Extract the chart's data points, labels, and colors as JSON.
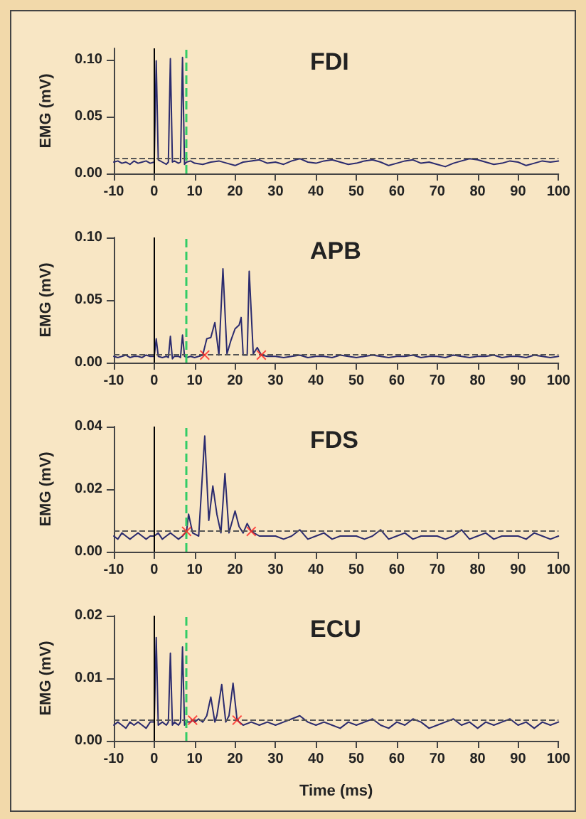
{
  "chart_data": [
    {
      "type": "line",
      "title": "FDI",
      "ylabel": "EMG (mV)",
      "xlim": [
        -10,
        100
      ],
      "xticks": [
        -10,
        0,
        10,
        20,
        30,
        40,
        50,
        60,
        70,
        80,
        90,
        100
      ],
      "ylim": [
        0,
        0.11
      ],
      "yticks": [
        {
          "value": 0,
          "label": "0.00"
        },
        {
          "value": 0.05,
          "label": "0.05"
        },
        {
          "value": 0.1,
          "label": "0.10"
        }
      ],
      "grid": false,
      "series": [
        {
          "color": "#2b2b6e",
          "marker": "none",
          "x": [
            -10,
            -9,
            -8,
            -7,
            -6,
            -5,
            -4,
            -3,
            -2,
            -1,
            0,
            0.5,
            1,
            2,
            3,
            3.5,
            4,
            4.5,
            5,
            6,
            6.5,
            7,
            7.5,
            8,
            9,
            10,
            12,
            14,
            16,
            18,
            20,
            22,
            24,
            26,
            28,
            30,
            32,
            34,
            36,
            38,
            40,
            42,
            44,
            46,
            48,
            50,
            52,
            54,
            56,
            58,
            60,
            62,
            64,
            66,
            68,
            70,
            72,
            74,
            76,
            78,
            80,
            82,
            84,
            86,
            88,
            90,
            92,
            94,
            96,
            98,
            100
          ],
          "values": [
            0.01,
            0.011,
            0.009,
            0.01,
            0.008,
            0.011,
            0.009,
            0.01,
            0.011,
            0.009,
            0.01,
            0.099,
            0.012,
            0.01,
            0.008,
            0.01,
            0.101,
            0.01,
            0.011,
            0.009,
            0.01,
            0.102,
            0.008,
            0.01,
            0.011,
            0.009,
            0.008,
            0.01,
            0.011,
            0.009,
            0.007,
            0.01,
            0.011,
            0.012,
            0.009,
            0.01,
            0.008,
            0.011,
            0.013,
            0.01,
            0.009,
            0.011,
            0.012,
            0.01,
            0.008,
            0.009,
            0.011,
            0.012,
            0.01,
            0.007,
            0.009,
            0.011,
            0.012,
            0.009,
            0.01,
            0.008,
            0.006,
            0.009,
            0.011,
            0.013,
            0.012,
            0.01,
            0.008,
            0.009,
            0.011,
            0.01,
            0.007,
            0.009,
            0.011,
            0.01,
            0.011
          ]
        }
      ],
      "ref_lines": [
        {
          "axis": "y",
          "value": 0.013,
          "color": "#555555",
          "line_style": "dashed"
        },
        {
          "axis": "x",
          "value": 0,
          "color": "#000000",
          "line_style": "solid"
        },
        {
          "axis": "x",
          "value": 8,
          "color": "#33cc66",
          "line_style": "dashed"
        }
      ]
    },
    {
      "type": "line",
      "title": "APB",
      "ylabel": "EMG (mV)",
      "xlim": [
        -10,
        100
      ],
      "xticks": [
        -10,
        0,
        10,
        20,
        30,
        40,
        50,
        60,
        70,
        80,
        90,
        100
      ],
      "ylim": [
        0,
        0.1
      ],
      "yticks": [
        {
          "value": 0,
          "label": "0.00"
        },
        {
          "value": 0.05,
          "label": "0.05"
        },
        {
          "value": 0.1,
          "label": "0.10"
        }
      ],
      "grid": false,
      "series": [
        {
          "color": "#2b2b6e",
          "marker": "none",
          "x": [
            -10,
            -9,
            -8,
            -7,
            -6,
            -5,
            -4,
            -3,
            -2,
            -1,
            0,
            0.5,
            1,
            2,
            3,
            3.5,
            4,
            4.5,
            5,
            6,
            6.5,
            7,
            7.5,
            8,
            9,
            10,
            11,
            12,
            13,
            14,
            15,
            16,
            17,
            18,
            19,
            20,
            21,
            21.5,
            22,
            23,
            23.5,
            24.5,
            25.5,
            26.5,
            28,
            30,
            32,
            34,
            36,
            38,
            40,
            42,
            44,
            46,
            48,
            50,
            52,
            54,
            56,
            58,
            60,
            62,
            64,
            66,
            68,
            70,
            72,
            74,
            76,
            78,
            80,
            82,
            84,
            86,
            88,
            90,
            92,
            94,
            96,
            98,
            100
          ],
          "values": [
            0.005,
            0.004,
            0.005,
            0.006,
            0.004,
            0.005,
            0.005,
            0.004,
            0.006,
            0.005,
            0.005,
            0.019,
            0.005,
            0.004,
            0.005,
            0.004,
            0.021,
            0.003,
            0.005,
            0.005,
            0.004,
            0.022,
            0.005,
            0.004,
            0.005,
            0.004,
            0.005,
            0.006,
            0.019,
            0.02,
            0.032,
            0.006,
            0.075,
            0.007,
            0.018,
            0.027,
            0.03,
            0.036,
            0.006,
            0.006,
            0.073,
            0.007,
            0.012,
            0.006,
            0.005,
            0.005,
            0.004,
            0.005,
            0.006,
            0.004,
            0.005,
            0.005,
            0.004,
            0.006,
            0.005,
            0.004,
            0.005,
            0.006,
            0.005,
            0.004,
            0.005,
            0.005,
            0.006,
            0.004,
            0.005,
            0.005,
            0.004,
            0.006,
            0.005,
            0.004,
            0.005,
            0.005,
            0.006,
            0.004,
            0.005,
            0.005,
            0.004,
            0.006,
            0.005,
            0.004,
            0.005
          ]
        },
        {
          "type": "scatter",
          "color": "#ff2020",
          "marker": "cross",
          "x": [
            12.5,
            26.5
          ],
          "values": [
            0.006,
            0.006
          ]
        }
      ],
      "ref_lines": [
        {
          "axis": "y",
          "value": 0.006,
          "color": "#555555",
          "line_style": "dashed"
        },
        {
          "axis": "x",
          "value": 0,
          "color": "#000000",
          "line_style": "solid"
        },
        {
          "axis": "x",
          "value": 8,
          "color": "#33cc66",
          "line_style": "dashed"
        }
      ]
    },
    {
      "type": "line",
      "title": "FDS",
      "ylabel": "EMG (mV)",
      "xlim": [
        -10,
        100
      ],
      "xticks": [
        -10,
        0,
        10,
        20,
        30,
        40,
        50,
        60,
        70,
        80,
        90,
        100
      ],
      "ylim": [
        0,
        0.04
      ],
      "yticks": [
        {
          "value": 0,
          "label": "0.00"
        },
        {
          "value": 0.02,
          "label": "0.02"
        },
        {
          "value": 0.04,
          "label": "0.04"
        }
      ],
      "grid": false,
      "series": [
        {
          "color": "#2b2b6e",
          "marker": "none",
          "x": [
            -10,
            -9,
            -8,
            -7,
            -6,
            -5,
            -4,
            -3,
            -2,
            -1,
            0,
            1,
            2,
            3,
            4,
            5,
            6,
            7,
            8,
            8.5,
            9.5,
            11,
            12.5,
            13.5,
            14.5,
            15.5,
            16.5,
            17.5,
            18.5,
            20,
            21,
            22,
            23,
            24,
            26,
            28,
            30,
            32,
            34,
            36,
            38,
            40,
            42,
            44,
            46,
            48,
            50,
            52,
            54,
            56,
            58,
            60,
            62,
            64,
            66,
            68,
            70,
            72,
            74,
            76,
            78,
            80,
            82,
            84,
            86,
            88,
            90,
            92,
            94,
            96,
            98,
            100
          ],
          "values": [
            0.005,
            0.004,
            0.006,
            0.005,
            0.004,
            0.005,
            0.006,
            0.005,
            0.004,
            0.005,
            0.005,
            0.006,
            0.004,
            0.005,
            0.006,
            0.005,
            0.004,
            0.005,
            0.0065,
            0.012,
            0.006,
            0.005,
            0.037,
            0.01,
            0.021,
            0.012,
            0.006,
            0.025,
            0.006,
            0.013,
            0.008,
            0.006,
            0.009,
            0.0065,
            0.005,
            0.005,
            0.005,
            0.004,
            0.005,
            0.007,
            0.004,
            0.005,
            0.006,
            0.004,
            0.005,
            0.005,
            0.005,
            0.004,
            0.005,
            0.007,
            0.004,
            0.005,
            0.006,
            0.004,
            0.005,
            0.005,
            0.005,
            0.004,
            0.005,
            0.007,
            0.004,
            0.005,
            0.006,
            0.004,
            0.005,
            0.005,
            0.005,
            0.004,
            0.006,
            0.005,
            0.004,
            0.005
          ]
        },
        {
          "type": "scatter",
          "color": "#ff2020",
          "marker": "cross",
          "x": [
            8,
            24
          ],
          "values": [
            0.0065,
            0.0065
          ]
        }
      ],
      "ref_lines": [
        {
          "axis": "y",
          "value": 0.0065,
          "color": "#555555",
          "line_style": "dashed"
        },
        {
          "axis": "x",
          "value": 0,
          "color": "#000000",
          "line_style": "solid"
        },
        {
          "axis": "x",
          "value": 8,
          "color": "#33cc66",
          "line_style": "dashed"
        }
      ]
    },
    {
      "type": "line",
      "title": "ECU",
      "ylabel": "EMG (mV)",
      "xlabel": "Time (ms)",
      "xlim": [
        -10,
        100
      ],
      "xticks": [
        -10,
        0,
        10,
        20,
        30,
        40,
        50,
        60,
        70,
        80,
        90,
        100
      ],
      "ylim": [
        0,
        0.02
      ],
      "yticks": [
        {
          "value": 0,
          "label": "0.00"
        },
        {
          "value": 0.01,
          "label": "0.01"
        },
        {
          "value": 0.02,
          "label": "0.02"
        }
      ],
      "grid": false,
      "series": [
        {
          "color": "#2b2b6e",
          "marker": "none",
          "x": [
            -10,
            -9,
            -8,
            -7,
            -6,
            -5,
            -4,
            -3,
            -2,
            -1,
            0,
            0.5,
            1,
            2,
            3,
            3.5,
            4,
            4.5,
            5,
            6,
            6.5,
            7,
            7.5,
            8,
            9,
            9.5,
            10,
            11,
            12,
            13,
            14,
            15,
            15.5,
            16.7,
            17.7,
            18.5,
            19.5,
            20.5,
            22,
            24,
            26,
            28,
            30,
            32,
            34,
            36,
            38,
            40,
            42,
            44,
            46,
            48,
            50,
            52,
            54,
            56,
            58,
            60,
            62,
            64,
            66,
            68,
            70,
            72,
            74,
            76,
            78,
            80,
            82,
            84,
            86,
            88,
            90,
            92,
            94,
            96,
            98,
            100
          ],
          "values": [
            0.0025,
            0.003,
            0.0025,
            0.002,
            0.003,
            0.0025,
            0.003,
            0.0025,
            0.002,
            0.003,
            0.003,
            0.0165,
            0.0025,
            0.003,
            0.0025,
            0.003,
            0.014,
            0.0025,
            0.003,
            0.0025,
            0.003,
            0.015,
            0.0025,
            0.003,
            0.003,
            0.0033,
            0.003,
            0.0035,
            0.003,
            0.004,
            0.007,
            0.003,
            0.004,
            0.009,
            0.003,
            0.004,
            0.0092,
            0.0033,
            0.0025,
            0.003,
            0.0025,
            0.003,
            0.0025,
            0.003,
            0.0035,
            0.004,
            0.003,
            0.0025,
            0.003,
            0.0025,
            0.002,
            0.003,
            0.0025,
            0.003,
            0.0035,
            0.0025,
            0.002,
            0.003,
            0.0025,
            0.0035,
            0.003,
            0.002,
            0.0025,
            0.003,
            0.0035,
            0.0025,
            0.003,
            0.002,
            0.003,
            0.0025,
            0.003,
            0.0035,
            0.0025,
            0.003,
            0.002,
            0.003,
            0.0025,
            0.003
          ]
        },
        {
          "type": "scatter",
          "color": "#ff2020",
          "marker": "cross",
          "x": [
            9.5,
            20.5
          ],
          "values": [
            0.0033,
            0.0033
          ]
        }
      ],
      "ref_lines": [
        {
          "axis": "y",
          "value": 0.0033,
          "color": "#555555",
          "line_style": "dashed"
        },
        {
          "axis": "x",
          "value": 0,
          "color": "#000000",
          "line_style": "solid"
        },
        {
          "axis": "x",
          "value": 8,
          "color": "#33cc66",
          "line_style": "dashed"
        }
      ]
    }
  ]
}
